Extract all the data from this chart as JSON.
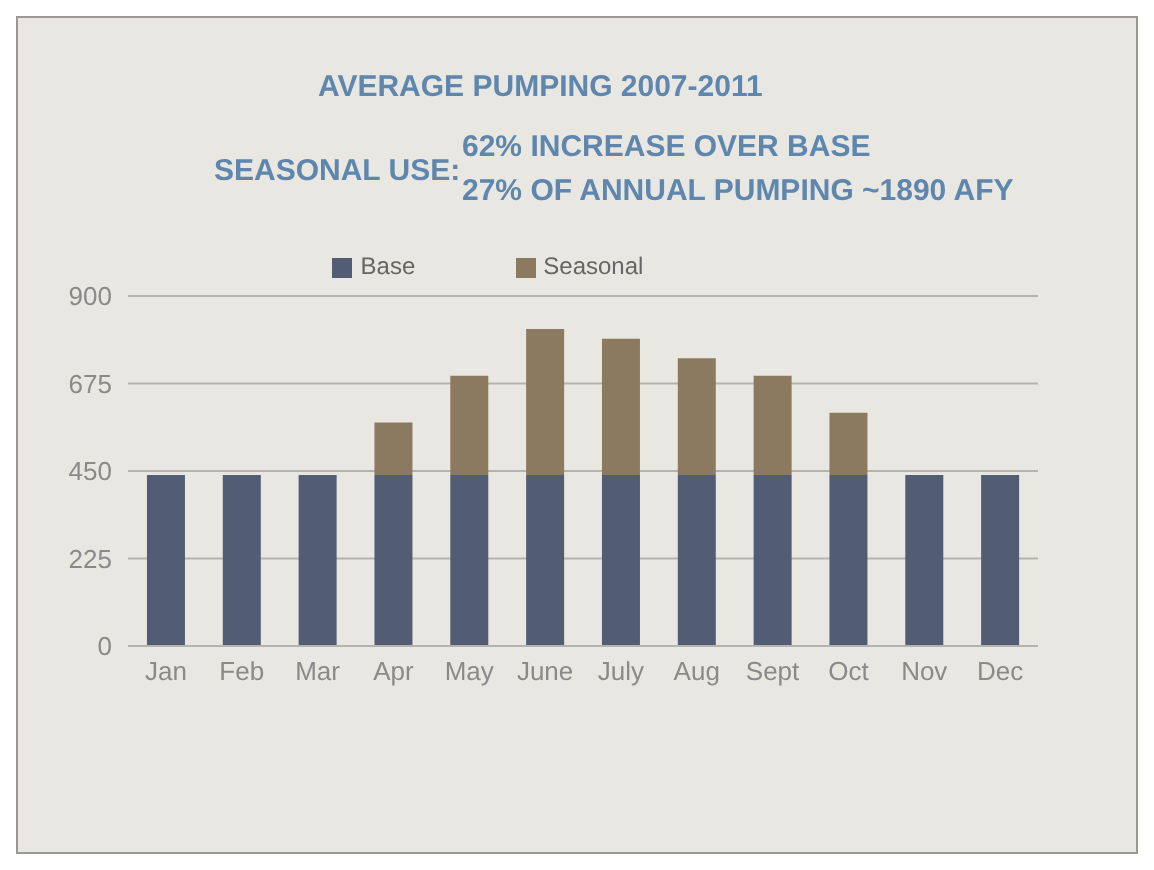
{
  "chart_data": {
    "type": "bar",
    "title": "AVERAGE PUMPING 2007-2011",
    "subtitle": "SEASONAL USE:",
    "annotations": [
      "62% INCREASE OVER BASE",
      "27% OF ANNUAL PUMPING  ~1890 AFY"
    ],
    "categories": [
      "Jan",
      "Feb",
      "Mar",
      "Apr",
      "May",
      "June",
      "July",
      "Aug",
      "Sept",
      "Oct",
      "Nov",
      "Dec"
    ],
    "series": [
      {
        "name": "Base",
        "color": "#525c74",
        "values": [
          440,
          440,
          440,
          440,
          440,
          440,
          440,
          440,
          440,
          440,
          440,
          440
        ]
      },
      {
        "name": "Seasonal",
        "color": "#8c7a60",
        "values": [
          null,
          null,
          null,
          135,
          255,
          375,
          350,
          300,
          255,
          160,
          null,
          null
        ]
      }
    ],
    "stacked": true,
    "ylim": [
      0,
      900
    ],
    "yticks": [
      0,
      225,
      450,
      675,
      900
    ],
    "grid": "y",
    "legend": "top"
  }
}
